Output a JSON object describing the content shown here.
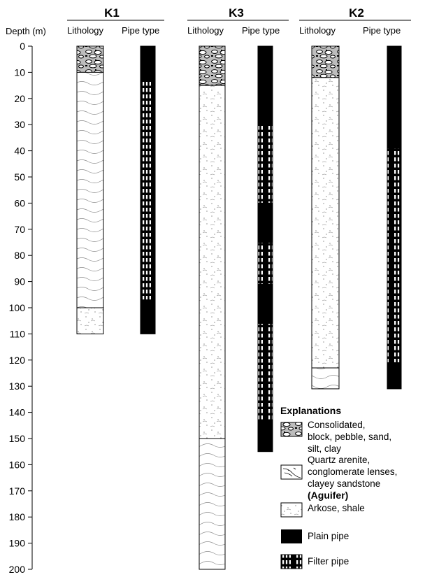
{
  "axis": {
    "label": "Depth (m)",
    "ticks": [
      0,
      10,
      20,
      30,
      40,
      50,
      60,
      70,
      80,
      90,
      100,
      110,
      120,
      130,
      140,
      150,
      160,
      170,
      180,
      190,
      200
    ]
  },
  "column_headers": {
    "lithology": "Lithology",
    "pipe": "Pipe type"
  },
  "wells": [
    {
      "id": "K1",
      "name": "K1",
      "total_depth_m": 110,
      "lithology": [
        {
          "type": "consolidated",
          "top": 0,
          "bottom": 10
        },
        {
          "type": "quartz_arenite",
          "top": 10,
          "bottom": 100
        },
        {
          "type": "arkose_shale",
          "top": 100,
          "bottom": 110
        }
      ],
      "pipe": [
        {
          "type": "plain",
          "top": 0,
          "bottom": 13
        },
        {
          "type": "filter",
          "top": 13,
          "bottom": 97
        },
        {
          "type": "plain",
          "top": 97,
          "bottom": 110
        }
      ]
    },
    {
      "id": "K3",
      "name": "K3",
      "total_depth_m": 200,
      "lithology": [
        {
          "type": "consolidated",
          "top": 0,
          "bottom": 15
        },
        {
          "type": "arkose_shale",
          "top": 15,
          "bottom": 150
        },
        {
          "type": "quartz_arenite",
          "top": 150,
          "bottom": 200
        }
      ],
      "pipe": [
        {
          "type": "plain",
          "top": 0,
          "bottom": 30
        },
        {
          "type": "filter",
          "top": 30,
          "bottom": 60
        },
        {
          "type": "plain",
          "top": 60,
          "bottom": 75
        },
        {
          "type": "filter",
          "top": 75,
          "bottom": 91
        },
        {
          "type": "plain",
          "top": 91,
          "bottom": 106
        },
        {
          "type": "filter",
          "top": 106,
          "bottom": 143
        },
        {
          "type": "plain",
          "top": 143,
          "bottom": 155
        }
      ]
    },
    {
      "id": "K2",
      "name": "K2",
      "total_depth_m": 131,
      "lithology": [
        {
          "type": "consolidated",
          "top": 0,
          "bottom": 12
        },
        {
          "type": "arkose_shale",
          "top": 12,
          "bottom": 123
        },
        {
          "type": "quartz_arenite",
          "top": 123,
          "bottom": 131
        }
      ],
      "pipe": [
        {
          "type": "plain",
          "top": 0,
          "bottom": 39
        },
        {
          "type": "filter",
          "top": 39,
          "bottom": 121
        },
        {
          "type": "plain",
          "top": 121,
          "bottom": 131
        }
      ]
    }
  ],
  "legend": {
    "title": "Explanations",
    "items": [
      {
        "type": "consolidated",
        "lines": [
          "Consolidated,",
          "block, pebble, sand,",
          "silt, clay"
        ]
      },
      {
        "type": "quartz_arenite",
        "lines": [
          "Quartz arenite,",
          "conglomerate lenses,",
          "clayey sandstone"
        ],
        "note": "(Aguifer)"
      },
      {
        "type": "arkose_shale",
        "lines": [
          "Arkose, shale"
        ]
      },
      {
        "type": "plain",
        "lines": [
          "Plain pipe"
        ]
      },
      {
        "type": "filter",
        "lines": [
          "Filter pipe"
        ]
      }
    ]
  },
  "colors": {
    "line": "#000000",
    "consolidated_fill": "#bdbdbd",
    "pattern": "#666666"
  }
}
